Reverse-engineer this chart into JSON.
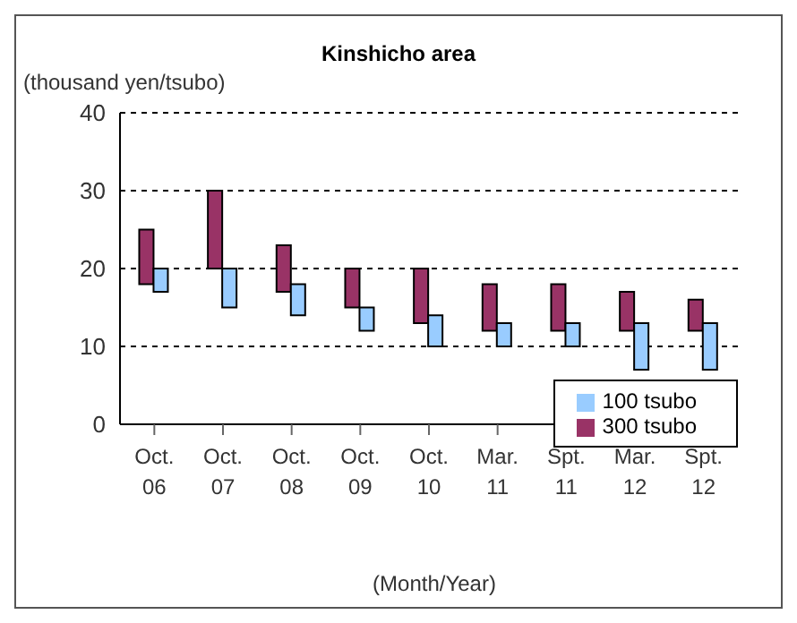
{
  "chart_data": {
    "type": "bar",
    "title": "Kinshicho area",
    "ylabel": "(thousand yen/tsubo)",
    "xlabel": "(Month/Year)",
    "categories": [
      "Oct. 06",
      "Oct. 07",
      "Oct. 08",
      "Oct. 09",
      "Oct. 10",
      "Mar. 11",
      "Spt. 11",
      "Mar. 12",
      "Spt. 12"
    ],
    "series": [
      {
        "name": "300 tsubo",
        "color": "#993366",
        "base": [
          18,
          20,
          17,
          15,
          13,
          12,
          12,
          12,
          12
        ],
        "values": [
          7,
          10,
          6,
          5,
          7,
          6,
          6,
          5,
          4
        ]
      },
      {
        "name": "100 tsubo",
        "color": "#99ccff",
        "base": [
          17,
          15,
          14,
          12,
          10,
          10,
          10,
          7,
          7
        ],
        "values": [
          3,
          5,
          4,
          3,
          4,
          3,
          3,
          6,
          6
        ]
      }
    ],
    "ylim": [
      0,
      40
    ],
    "yticks": [
      0,
      10,
      20,
      30,
      40
    ],
    "grid": "y",
    "legend": "bottom right"
  }
}
